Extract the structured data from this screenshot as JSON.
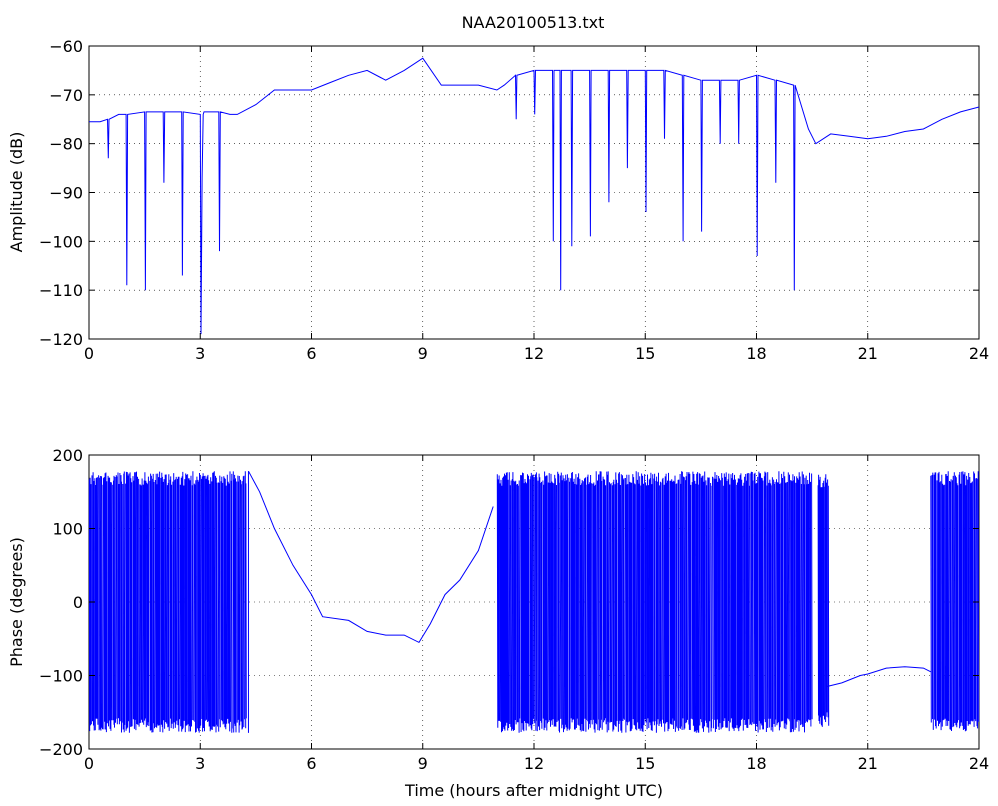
{
  "figure_title": "NAA20100513.txt",
  "colors": {
    "series": "#0000ff",
    "axes": "#000000",
    "background": "#ffffff"
  },
  "chart_data": [
    {
      "type": "line",
      "title": "NAA20100513.txt",
      "xlabel": "",
      "ylabel": "Amplitude (dB)",
      "xlim": [
        0,
        24
      ],
      "ylim": [
        -120,
        -60
      ],
      "xticks": [
        0,
        3,
        6,
        9,
        12,
        15,
        18,
        21,
        24
      ],
      "xtick_labels": [
        "0",
        "3",
        "6",
        "9",
        "12",
        "15",
        "18",
        "21",
        "24"
      ],
      "yticks": [
        -120,
        -110,
        -100,
        -90,
        -80,
        -70,
        -60
      ],
      "ytick_labels": [
        "−120",
        "−110",
        "−100",
        "−90",
        "−80",
        "−70",
        "−60"
      ],
      "grid": true,
      "series": [
        {
          "x": [
            0,
            0.3,
            0.5,
            0.52,
            0.54,
            0.8,
            1.0,
            1.02,
            1.04,
            1.5,
            1.52,
            1.54,
            2.0,
            2.02,
            2.04,
            2.5,
            2.52,
            2.54,
            3.0,
            3.02,
            3.05,
            3.08,
            3.1,
            3.5,
            3.52,
            3.54,
            3.8,
            4.0,
            4.5,
            5.0,
            5.5,
            6.0,
            6.5,
            7.0,
            7.5,
            8.0,
            8.5,
            9.0,
            9.5,
            10.0,
            10.5,
            11.0,
            11.2,
            11.5,
            11.52,
            11.54,
            12.0,
            12.02,
            12.04,
            12.5,
            12.52,
            12.54,
            12.7,
            12.72,
            12.74,
            13.0,
            13.02,
            13.04,
            13.5,
            13.52,
            13.54,
            14.0,
            14.02,
            14.04,
            14.5,
            14.52,
            14.54,
            15.0,
            15.02,
            15.04,
            15.5,
            15.52,
            15.54,
            16.0,
            16.02,
            16.04,
            16.5,
            16.52,
            16.54,
            17.0,
            17.02,
            17.04,
            17.5,
            17.52,
            17.54,
            18.0,
            18.02,
            18.04,
            18.5,
            18.52,
            18.54,
            19.0,
            19.02,
            19.04,
            19.2,
            19.4,
            19.6,
            20.0,
            20.5,
            21.0,
            21.5,
            22.0,
            22.5,
            23.0,
            23.5,
            24.0
          ],
          "y": [
            -75.5,
            -75.5,
            -75,
            -83,
            -75,
            -74,
            -74,
            -109,
            -74,
            -73.5,
            -110,
            -73.5,
            -73.5,
            -88,
            -73.5,
            -73.5,
            -107,
            -73.5,
            -74,
            -119,
            -87,
            -74,
            -73.5,
            -73.5,
            -102,
            -73.5,
            -74,
            -74,
            -72,
            -69,
            -69,
            -69,
            -67.5,
            -66,
            -65,
            -67,
            -65,
            -62.5,
            -68,
            -68,
            -68,
            -69,
            -68,
            -66,
            -75,
            -66,
            -65,
            -74,
            -65,
            -65,
            -100,
            -65,
            -65,
            -110,
            -65,
            -65,
            -101,
            -65,
            -65,
            -99,
            -65,
            -65,
            -92,
            -65,
            -65,
            -85,
            -65,
            -65,
            -94,
            -65,
            -65,
            -79,
            -65,
            -66,
            -100,
            -66,
            -67,
            -98,
            -67,
            -67,
            -80,
            -67,
            -67,
            -80,
            -67,
            -66,
            -103,
            -66,
            -67,
            -88,
            -67,
            -68,
            -110,
            -68,
            -72,
            -77,
            -80,
            -78,
            -78.5,
            -79,
            -78.5,
            -77.5,
            -77,
            -75,
            -73.5,
            -72.5
          ]
        }
      ]
    },
    {
      "type": "line",
      "title": "",
      "xlabel": "Time (hours after midnight UTC)",
      "ylabel": "Phase (degrees)",
      "xlim": [
        0,
        24
      ],
      "ylim": [
        -200,
        200
      ],
      "xticks": [
        0,
        3,
        6,
        9,
        12,
        15,
        18,
        21,
        24
      ],
      "xtick_labels": [
        "0",
        "3",
        "6",
        "9",
        "12",
        "15",
        "18",
        "21",
        "24"
      ],
      "yticks": [
        -200,
        -100,
        0,
        100,
        200
      ],
      "ytick_labels": [
        "−200",
        "−100",
        "0",
        "100",
        "200"
      ],
      "grid": true,
      "series": [
        {
          "x": [
            4.3,
            4.6,
            5.0,
            5.5,
            6.0,
            6.3,
            7.0,
            7.5,
            8.0,
            8.5,
            8.9,
            9.2,
            9.6,
            10.0,
            10.5,
            10.9
          ],
          "y": [
            178,
            150,
            100,
            50,
            10,
            -20,
            -25,
            -40,
            -45,
            -45,
            -55,
            -30,
            10,
            30,
            70,
            130
          ]
        },
        {
          "x": [
            19.9,
            20.3,
            20.8,
            21.0,
            21.5,
            22.0,
            22.5,
            22.7
          ],
          "y": [
            -115,
            -110,
            -100,
            -98,
            -90,
            -88,
            -90,
            -95
          ]
        }
      ]
    }
  ]
}
